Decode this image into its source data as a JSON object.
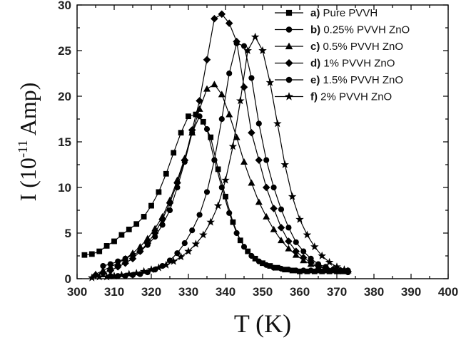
{
  "chart_data": {
    "type": "line",
    "xlabel": "T (K)",
    "ylabel": {
      "prefix": "I (10",
      "exponent": "-11",
      "suffix": " Amp)"
    },
    "xlim": [
      300,
      400
    ],
    "ylim": [
      0,
      30
    ],
    "x_ticks": [
      "300",
      "310",
      "320",
      "330",
      "340",
      "350",
      "360",
      "370",
      "380",
      "390",
      "400"
    ],
    "y_ticks": [
      "0",
      "5",
      "10",
      "15",
      "20",
      "25",
      "30"
    ],
    "legend_position": "top-right",
    "series": [
      {
        "key": "a)",
        "name": "Pure PVVH",
        "marker": "square",
        "points": [
          [
            302,
            2.6
          ],
          [
            304,
            2.7
          ],
          [
            306,
            3.0
          ],
          [
            308,
            3.6
          ],
          [
            310,
            4.1
          ],
          [
            312,
            4.8
          ],
          [
            314,
            5.4
          ],
          [
            316,
            6.0
          ],
          [
            318,
            6.8
          ],
          [
            320,
            8.0
          ],
          [
            322,
            9.5
          ],
          [
            324,
            11.5
          ],
          [
            326,
            13.8
          ],
          [
            328,
            16.0
          ],
          [
            330,
            17.8
          ],
          [
            332,
            18.0
          ],
          [
            334,
            17.2
          ],
          [
            336,
            15.5
          ],
          [
            338,
            12.0
          ],
          [
            340,
            9.0
          ],
          [
            342,
            6.2
          ],
          [
            344,
            4.2
          ],
          [
            346,
            3.0
          ],
          [
            348,
            2.2
          ],
          [
            350,
            1.7
          ],
          [
            352,
            1.4
          ],
          [
            354,
            1.2
          ],
          [
            356,
            1.0
          ],
          [
            358,
            0.9
          ],
          [
            360,
            0.8
          ],
          [
            362,
            0.8
          ],
          [
            364,
            0.8
          ],
          [
            366,
            0.8
          ],
          [
            368,
            0.8
          ],
          [
            370,
            0.8
          ],
          [
            372,
            0.8
          ]
        ]
      },
      {
        "key": "b)",
        "name": "0.25% PVVH ZnO",
        "marker": "circle",
        "points": [
          [
            307,
            1.4
          ],
          [
            309,
            1.6
          ],
          [
            311,
            1.9
          ],
          [
            313,
            2.2
          ],
          [
            315,
            2.6
          ],
          [
            317,
            3.0
          ],
          [
            319,
            3.7
          ],
          [
            321,
            4.6
          ],
          [
            323,
            5.9
          ],
          [
            325,
            7.5
          ],
          [
            327,
            10.0
          ],
          [
            329,
            12.8
          ],
          [
            331,
            16.0
          ],
          [
            333,
            17.8
          ],
          [
            335,
            16.4
          ],
          [
            337,
            13.0
          ],
          [
            339,
            10.0
          ],
          [
            341,
            7.2
          ],
          [
            343,
            5.0
          ],
          [
            345,
            3.5
          ],
          [
            347,
            2.5
          ],
          [
            349,
            1.9
          ],
          [
            351,
            1.5
          ],
          [
            353,
            1.2
          ],
          [
            355,
            1.1
          ],
          [
            357,
            1.0
          ],
          [
            359,
            0.9
          ],
          [
            361,
            0.9
          ],
          [
            363,
            0.9
          ],
          [
            365,
            0.9
          ],
          [
            367,
            0.9
          ],
          [
            369,
            0.9
          ],
          [
            371,
            0.9
          ],
          [
            373,
            0.9
          ]
        ]
      },
      {
        "key": "c)",
        "name": "0.5% PVVH ZnO",
        "marker": "triangle",
        "points": [
          [
            305,
            0.5
          ],
          [
            307,
            0.9
          ],
          [
            309,
            1.3
          ],
          [
            311,
            1.7
          ],
          [
            313,
            2.2
          ],
          [
            315,
            2.8
          ],
          [
            317,
            3.5
          ],
          [
            319,
            4.4
          ],
          [
            321,
            5.5
          ],
          [
            323,
            6.8
          ],
          [
            325,
            8.6
          ],
          [
            327,
            10.8
          ],
          [
            329,
            13.2
          ],
          [
            331,
            16.0
          ],
          [
            333,
            18.6
          ],
          [
            335,
            20.8
          ],
          [
            337,
            21.3
          ],
          [
            339,
            20.2
          ],
          [
            341,
            18.0
          ],
          [
            343,
            15.5
          ],
          [
            345,
            12.8
          ],
          [
            347,
            10.5
          ],
          [
            349,
            8.4
          ],
          [
            351,
            6.8
          ],
          [
            353,
            5.4
          ],
          [
            355,
            4.2
          ],
          [
            357,
            3.3
          ],
          [
            359,
            2.6
          ],
          [
            361,
            2.0
          ],
          [
            363,
            1.6
          ],
          [
            365,
            1.3
          ],
          [
            367,
            1.1
          ],
          [
            369,
            1.0
          ],
          [
            371,
            0.9
          ],
          [
            373,
            0.9
          ]
        ]
      },
      {
        "key": "d)",
        "name": "1% PVVH ZnO",
        "marker": "diamond",
        "points": [
          [
            305,
            0.4
          ],
          [
            307,
            0.6
          ],
          [
            309,
            0.9
          ],
          [
            311,
            1.3
          ],
          [
            313,
            1.7
          ],
          [
            315,
            2.2
          ],
          [
            317,
            3.0
          ],
          [
            319,
            3.9
          ],
          [
            321,
            5.0
          ],
          [
            323,
            6.5
          ],
          [
            325,
            8.3
          ],
          [
            327,
            10.5
          ],
          [
            329,
            13.0
          ],
          [
            331,
            16.3
          ],
          [
            333,
            19.5
          ],
          [
            335,
            24.0
          ],
          [
            337,
            28.5
          ],
          [
            339,
            29.0
          ],
          [
            341,
            28.0
          ],
          [
            343,
            26.0
          ],
          [
            345,
            21.0
          ],
          [
            347,
            16.0
          ],
          [
            349,
            13.0
          ],
          [
            351,
            10.0
          ],
          [
            353,
            7.7
          ],
          [
            355,
            5.6
          ],
          [
            357,
            4.1
          ],
          [
            359,
            3.0
          ],
          [
            361,
            2.3
          ],
          [
            363,
            1.8
          ],
          [
            365,
            1.4
          ],
          [
            367,
            1.2
          ],
          [
            369,
            1.0
          ],
          [
            371,
            0.9
          ],
          [
            373,
            0.8
          ]
        ]
      },
      {
        "key": "e)",
        "name": "1.5% PVVH ZnO",
        "marker": "circle",
        "points": [
          [
            309,
            0.3
          ],
          [
            311,
            0.3
          ],
          [
            313,
            0.3
          ],
          [
            315,
            0.4
          ],
          [
            317,
            0.5
          ],
          [
            319,
            0.7
          ],
          [
            321,
            1.0
          ],
          [
            323,
            1.4
          ],
          [
            325,
            2.0
          ],
          [
            327,
            2.8
          ],
          [
            329,
            3.9
          ],
          [
            331,
            5.3
          ],
          [
            333,
            7.0
          ],
          [
            335,
            9.5
          ],
          [
            337,
            13.0
          ],
          [
            339,
            17.5
          ],
          [
            341,
            22.5
          ],
          [
            343,
            25.8
          ],
          [
            345,
            25.5
          ],
          [
            347,
            22.0
          ],
          [
            349,
            17.0
          ],
          [
            351,
            13.0
          ],
          [
            353,
            10.0
          ],
          [
            355,
            7.6
          ],
          [
            357,
            5.6
          ],
          [
            359,
            4.0
          ],
          [
            361,
            3.0
          ],
          [
            363,
            2.2
          ],
          [
            365,
            1.6
          ],
          [
            367,
            1.3
          ],
          [
            369,
            1.0
          ],
          [
            371,
            0.8
          ],
          [
            373,
            0.7
          ]
        ]
      },
      {
        "key": "f)",
        "name": "2% PVVH ZnO",
        "marker": "star",
        "points": [
          [
            304,
            0.1
          ],
          [
            306,
            0.2
          ],
          [
            308,
            0.2
          ],
          [
            310,
            0.3
          ],
          [
            312,
            0.4
          ],
          [
            314,
            0.5
          ],
          [
            316,
            0.6
          ],
          [
            318,
            0.8
          ],
          [
            320,
            1.0
          ],
          [
            322,
            1.2
          ],
          [
            324,
            1.5
          ],
          [
            326,
            1.9
          ],
          [
            328,
            2.4
          ],
          [
            330,
            3.0
          ],
          [
            332,
            3.8
          ],
          [
            334,
            4.8
          ],
          [
            336,
            6.2
          ],
          [
            338,
            8.0
          ],
          [
            340,
            10.8
          ],
          [
            342,
            14.5
          ],
          [
            344,
            19.5
          ],
          [
            346,
            25.0
          ],
          [
            348,
            26.5
          ],
          [
            350,
            25.0
          ],
          [
            352,
            21.5
          ],
          [
            354,
            17.0
          ],
          [
            356,
            12.5
          ],
          [
            358,
            9.0
          ],
          [
            360,
            6.5
          ],
          [
            362,
            4.8
          ],
          [
            364,
            3.5
          ],
          [
            366,
            2.5
          ],
          [
            368,
            1.8
          ],
          [
            370,
            1.3
          ],
          [
            372,
            1.0
          ]
        ]
      }
    ]
  }
}
